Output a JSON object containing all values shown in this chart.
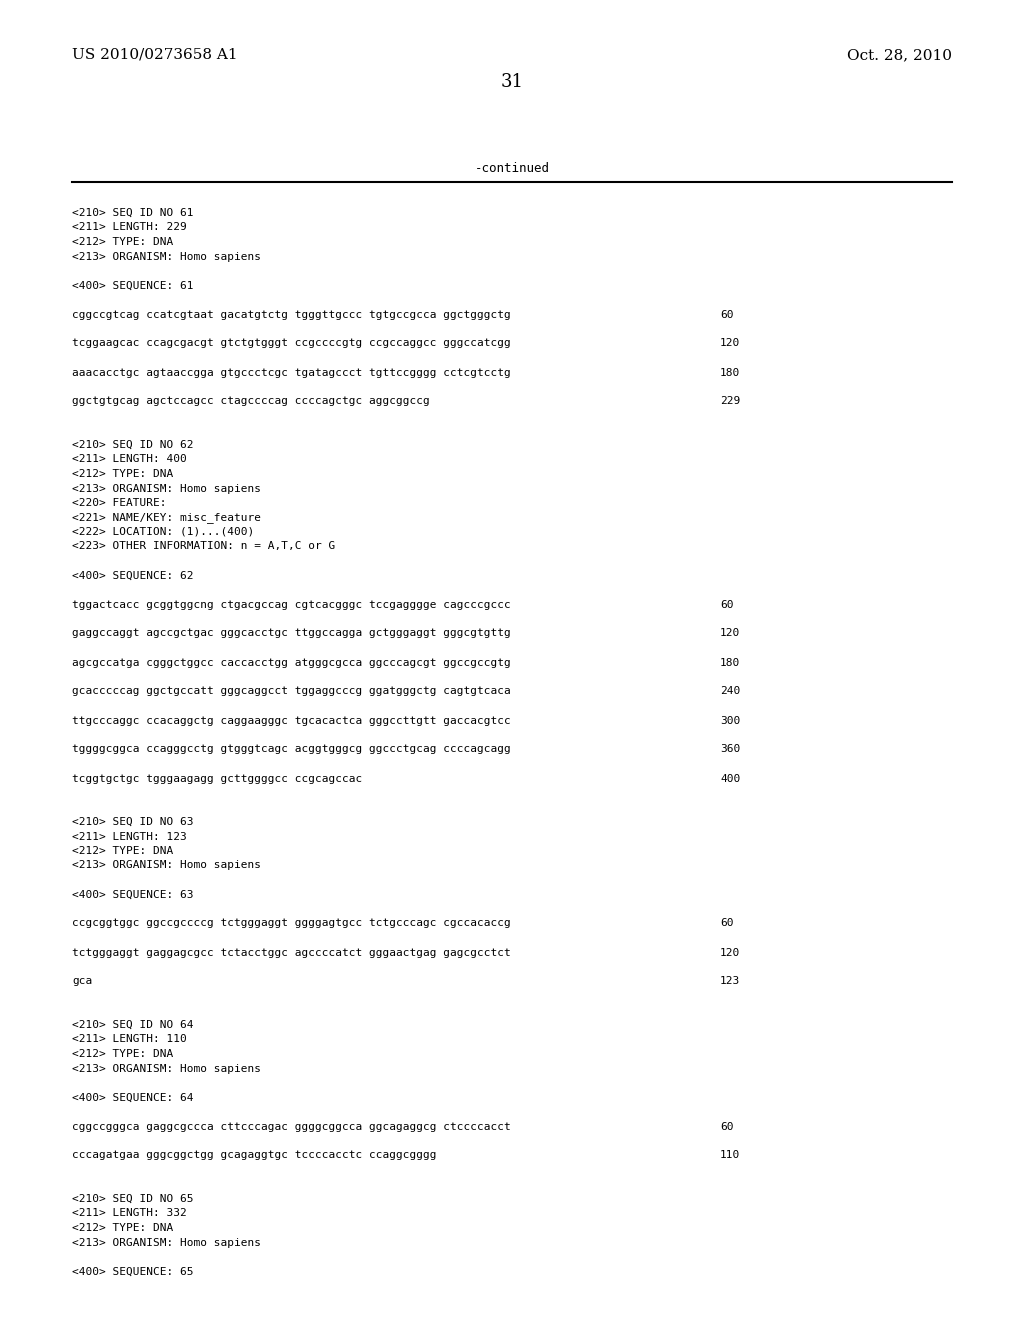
{
  "background_color": "#ffffff",
  "header_left": "US 2010/0273658 A1",
  "header_right": "Oct. 28, 2010",
  "page_number": "31",
  "continued_text": "-continued",
  "content_lines": [
    {
      "text": "<210> SEQ ID NO 61",
      "indent": false
    },
    {
      "text": "<211> LENGTH: 229",
      "indent": false
    },
    {
      "text": "<212> TYPE: DNA",
      "indent": false
    },
    {
      "text": "<213> ORGANISM: Homo sapiens",
      "indent": false
    },
    {
      "text": "",
      "indent": false
    },
    {
      "text": "<400> SEQUENCE: 61",
      "indent": false
    },
    {
      "text": "",
      "indent": false
    },
    {
      "text": "cggccgtcag ccatcgtaat gacatgtctg tgggttgccc tgtgccgcca ggctgggctg",
      "indent": false,
      "num": "60"
    },
    {
      "text": "",
      "indent": false
    },
    {
      "text": "tcggaagcac ccagcgacgt gtctgtgggt ccgccccgtg ccgccaggcc gggccatcgg",
      "indent": false,
      "num": "120"
    },
    {
      "text": "",
      "indent": false
    },
    {
      "text": "aaacacctgc agtaaccgga gtgccctcgc tgatagccct tgttccgggg cctcgtcctg",
      "indent": false,
      "num": "180"
    },
    {
      "text": "",
      "indent": false
    },
    {
      "text": "ggctgtgcag agctccagcc ctagccccag ccccagctgc aggcggccg",
      "indent": false,
      "num": "229"
    },
    {
      "text": "",
      "indent": false
    },
    {
      "text": "",
      "indent": false
    },
    {
      "text": "<210> SEQ ID NO 62",
      "indent": false
    },
    {
      "text": "<211> LENGTH: 400",
      "indent": false
    },
    {
      "text": "<212> TYPE: DNA",
      "indent": false
    },
    {
      "text": "<213> ORGANISM: Homo sapiens",
      "indent": false
    },
    {
      "text": "<220> FEATURE:",
      "indent": false
    },
    {
      "text": "<221> NAME/KEY: misc_feature",
      "indent": false
    },
    {
      "text": "<222> LOCATION: (1)...(400)",
      "indent": false
    },
    {
      "text": "<223> OTHER INFORMATION: n = A,T,C or G",
      "indent": false
    },
    {
      "text": "",
      "indent": false
    },
    {
      "text": "<400> SEQUENCE: 62",
      "indent": false
    },
    {
      "text": "",
      "indent": false
    },
    {
      "text": "tggactcacc gcggtggcng ctgacgccag cgtcacgggc tccgagggge cagcccgccc",
      "indent": false,
      "num": "60"
    },
    {
      "text": "",
      "indent": false
    },
    {
      "text": "gaggccaggt agccgctgac gggcacctgc ttggccagga gctgggaggt gggcgtgttg",
      "indent": false,
      "num": "120"
    },
    {
      "text": "",
      "indent": false
    },
    {
      "text": "agcgccatga cgggctggcc caccacctgg atgggcgcca ggcccagcgt ggccgccgtg",
      "indent": false,
      "num": "180"
    },
    {
      "text": "",
      "indent": false
    },
    {
      "text": "gcacccccag ggctgccatt gggcaggcct tggaggcccg ggatgggctg cagtgtcaca",
      "indent": false,
      "num": "240"
    },
    {
      "text": "",
      "indent": false
    },
    {
      "text": "ttgcccaggc ccacaggctg caggaagggc tgcacactca gggccttgtt gaccacgtcc",
      "indent": false,
      "num": "300"
    },
    {
      "text": "",
      "indent": false
    },
    {
      "text": "tggggcggca ccagggcctg gtgggtcagc acggtgggcg ggccctgcag ccccagcagg",
      "indent": false,
      "num": "360"
    },
    {
      "text": "",
      "indent": false
    },
    {
      "text": "tcggtgctgc tgggaagagg gcttggggcc ccgcagccac",
      "indent": false,
      "num": "400"
    },
    {
      "text": "",
      "indent": false
    },
    {
      "text": "",
      "indent": false
    },
    {
      "text": "<210> SEQ ID NO 63",
      "indent": false
    },
    {
      "text": "<211> LENGTH: 123",
      "indent": false
    },
    {
      "text": "<212> TYPE: DNA",
      "indent": false
    },
    {
      "text": "<213> ORGANISM: Homo sapiens",
      "indent": false
    },
    {
      "text": "",
      "indent": false
    },
    {
      "text": "<400> SEQUENCE: 63",
      "indent": false
    },
    {
      "text": "",
      "indent": false
    },
    {
      "text": "ccgcggtggc ggccgccccg tctgggaggt ggggagtgcc tctgcccagc cgccacaccg",
      "indent": false,
      "num": "60"
    },
    {
      "text": "",
      "indent": false
    },
    {
      "text": "tctgggaggt gaggagcgcc tctacctggc agccccatct gggaactgag gagcgcctct",
      "indent": false,
      "num": "120"
    },
    {
      "text": "",
      "indent": false
    },
    {
      "text": "gca",
      "indent": false,
      "num": "123"
    },
    {
      "text": "",
      "indent": false
    },
    {
      "text": "",
      "indent": false
    },
    {
      "text": "<210> SEQ ID NO 64",
      "indent": false
    },
    {
      "text": "<211> LENGTH: 110",
      "indent": false
    },
    {
      "text": "<212> TYPE: DNA",
      "indent": false
    },
    {
      "text": "<213> ORGANISM: Homo sapiens",
      "indent": false
    },
    {
      "text": "",
      "indent": false
    },
    {
      "text": "<400> SEQUENCE: 64",
      "indent": false
    },
    {
      "text": "",
      "indent": false
    },
    {
      "text": "cggccgggca gaggcgccca cttcccagac ggggcggcca ggcagaggcg ctccccacct",
      "indent": false,
      "num": "60"
    },
    {
      "text": "",
      "indent": false
    },
    {
      "text": "cccagatgaa gggcggctgg gcagaggtgc tccccacctc ccaggcgggg",
      "indent": false,
      "num": "110"
    },
    {
      "text": "",
      "indent": false
    },
    {
      "text": "",
      "indent": false
    },
    {
      "text": "<210> SEQ ID NO 65",
      "indent": false
    },
    {
      "text": "<211> LENGTH: 332",
      "indent": false
    },
    {
      "text": "<212> TYPE: DNA",
      "indent": false
    },
    {
      "text": "<213> ORGANISM: Homo sapiens",
      "indent": false
    },
    {
      "text": "",
      "indent": false
    },
    {
      "text": "<400> SEQUENCE: 65",
      "indent": false
    }
  ],
  "mono_size": 8.0,
  "header_size": 11.0,
  "page_num_size": 13.0,
  "continued_size": 9.0
}
